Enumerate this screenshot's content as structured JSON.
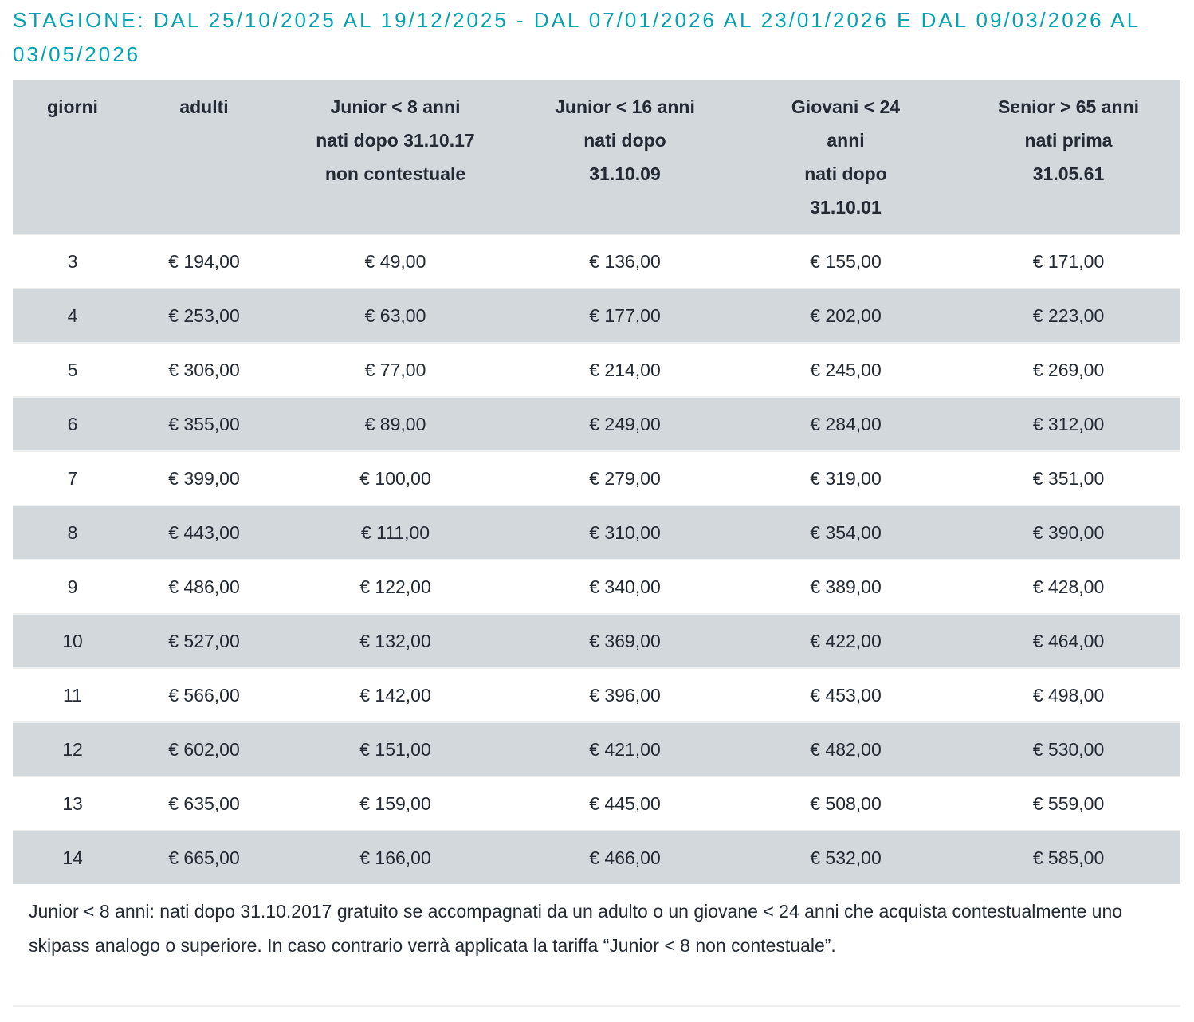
{
  "title": "Stagione: dal 25/10/2025 al 19/12/2025 - dal 07/01/2026 al 23/01/2026 e dal 09/03/2026 al 03/05/2026",
  "colors": {
    "title": "#00a3b4",
    "header_bg": "#d3d8dd",
    "alt_row_bg": "#d3d8dd"
  },
  "table": {
    "headers": [
      [
        "giorni"
      ],
      [
        "adulti"
      ],
      [
        "Junior < 8 anni",
        "nati dopo 31.10.17",
        "non contestuale"
      ],
      [
        "Junior < 16 anni",
        "nati dopo",
        "31.10.09"
      ],
      [
        "Giovani < 24",
        "anni",
        "nati dopo",
        "31.10.01"
      ],
      [
        "Senior > 65 anni",
        "nati prima",
        "31.05.61"
      ]
    ],
    "rows": [
      [
        "3",
        "€ 194,00",
        "€ 49,00",
        "€ 136,00",
        "€ 155,00",
        "€ 171,00"
      ],
      [
        "4",
        "€ 253,00",
        "€ 63,00",
        "€ 177,00",
        "€ 202,00",
        "€ 223,00"
      ],
      [
        "5",
        "€ 306,00",
        "€ 77,00",
        "€ 214,00",
        "€ 245,00",
        "€ 269,00"
      ],
      [
        "6",
        "€ 355,00",
        "€ 89,00",
        "€ 249,00",
        "€ 284,00",
        "€ 312,00"
      ],
      [
        "7",
        "€ 399,00",
        "€ 100,00",
        "€ 279,00",
        "€ 319,00",
        "€ 351,00"
      ],
      [
        "8",
        "€ 443,00",
        "€ 111,00",
        "€ 310,00",
        "€ 354,00",
        "€ 390,00"
      ],
      [
        "9",
        "€ 486,00",
        "€ 122,00",
        "€ 340,00",
        "€ 389,00",
        "€ 428,00"
      ],
      [
        "10",
        "€ 527,00",
        "€ 132,00",
        "€ 369,00",
        "€ 422,00",
        "€ 464,00"
      ],
      [
        "11",
        "€ 566,00",
        "€ 142,00",
        "€ 396,00",
        "€ 453,00",
        "€ 498,00"
      ],
      [
        "12",
        "€ 602,00",
        "€ 151,00",
        "€ 421,00",
        "€ 482,00",
        "€ 530,00"
      ],
      [
        "13",
        "€ 635,00",
        "€ 159,00",
        "€ 445,00",
        "€ 508,00",
        "€ 559,00"
      ],
      [
        "14",
        "€ 665,00",
        "€ 166,00",
        "€ 466,00",
        "€ 532,00",
        "€ 585,00"
      ]
    ]
  },
  "note": "Junior < 8 anni: nati dopo 31.10.2017 gratuito se accompagnati da un adulto o un giovane < 24 anni che acquista contestualmente uno skipass analogo o superiore. In caso contrario verrà applicata la tariffa “Junior < 8 non contestuale”."
}
